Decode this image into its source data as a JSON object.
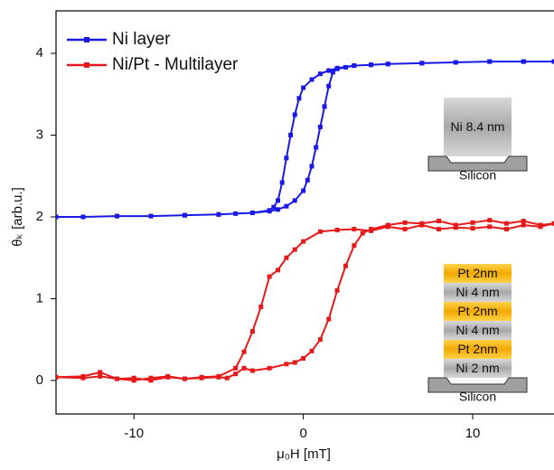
{
  "chart_data": {
    "type": "line",
    "xlabel": "μ₀H [mT]",
    "ylabel": "θₖ [arb.u.]",
    "xlim": [
      -14.6,
      14.8
    ],
    "ylim": [
      -0.41,
      4.52
    ],
    "xticks": [
      -10,
      0,
      10
    ],
    "yticks": [
      0,
      1,
      2,
      3,
      4
    ],
    "legend": "upper left",
    "series": [
      {
        "name": "Ni layer",
        "color": "#1a1ae6",
        "x": [
          -14.6,
          -13,
          -11,
          -9,
          -7,
          -5,
          -4,
          -3,
          -2,
          -1.5,
          -1,
          -0.5,
          0,
          0.25,
          0.5,
          0.75,
          1,
          1.25,
          1.5,
          1.75,
          2,
          2.5,
          3,
          4,
          5,
          7,
          9,
          11,
          13,
          14.8,
          13,
          11,
          9,
          7,
          5,
          4,
          3,
          2,
          1.5,
          1,
          0.5,
          0,
          -0.25,
          -0.5,
          -0.75,
          -1,
          -1.25,
          -1.5,
          -1.75,
          -2,
          -3,
          -5,
          -7,
          -9,
          -11,
          -13,
          -14.6
        ],
        "values": [
          2.0,
          2.0,
          2.01,
          2.01,
          2.02,
          2.03,
          2.04,
          2.05,
          2.07,
          2.09,
          2.13,
          2.2,
          2.32,
          2.45,
          2.62,
          2.85,
          3.1,
          3.35,
          3.6,
          3.77,
          3.81,
          3.83,
          3.85,
          3.86,
          3.87,
          3.88,
          3.89,
          3.9,
          3.9,
          3.9,
          3.9,
          3.9,
          3.89,
          3.88,
          3.87,
          3.86,
          3.85,
          3.82,
          3.79,
          3.75,
          3.68,
          3.58,
          3.45,
          3.25,
          3.0,
          2.72,
          2.42,
          2.2,
          2.12,
          2.08,
          2.05,
          2.03,
          2.02,
          2.01,
          2.01,
          2.0,
          2.0
        ]
      },
      {
        "name": "Ni/Pt - Multilayer",
        "color": "#e61a1a",
        "x": [
          -14.6,
          -13,
          -12,
          -11,
          -10,
          -9,
          -8,
          -7,
          -6,
          -5,
          -4.5,
          -4,
          -3.5,
          -3,
          -2,
          -1,
          -0.5,
          0,
          0.5,
          1,
          1.5,
          2,
          2.5,
          3,
          3.5,
          4,
          5,
          6,
          7,
          8,
          9,
          10,
          11,
          12,
          13,
          14,
          14.8,
          14,
          13,
          12,
          11,
          10,
          9,
          8,
          7,
          6,
          5,
          4,
          3,
          2,
          1,
          0,
          -0.5,
          -1,
          -1.5,
          -2,
          -2.5,
          -3,
          -3.5,
          -4,
          -5,
          -6,
          -7,
          -8,
          -9,
          -10,
          -11,
          -12,
          -13,
          -14.6
        ],
        "values": [
          0.04,
          0.05,
          0.1,
          0.02,
          0.03,
          0.0,
          0.04,
          0.02,
          0.03,
          0.04,
          0.03,
          0.08,
          0.15,
          0.12,
          0.15,
          0.2,
          0.22,
          0.27,
          0.36,
          0.5,
          0.75,
          1.1,
          1.4,
          1.65,
          1.8,
          1.85,
          1.9,
          1.93,
          1.92,
          1.95,
          1.9,
          1.93,
          1.96,
          1.92,
          1.95,
          1.9,
          1.92,
          1.88,
          1.9,
          1.85,
          1.88,
          1.86,
          1.87,
          1.85,
          1.9,
          1.85,
          1.88,
          1.83,
          1.85,
          1.84,
          1.82,
          1.7,
          1.6,
          1.5,
          1.35,
          1.27,
          0.9,
          0.6,
          0.35,
          0.15,
          0.05,
          0.04,
          0.02,
          0.05,
          0.03,
          0.0,
          0.02,
          0.05,
          0.03,
          0.04
        ]
      }
    ],
    "insets": [
      {
        "layers": [
          {
            "label": "Ni 8.4 nm",
            "color": "#b0b0b0"
          }
        ],
        "substrate": "Silicon"
      },
      {
        "layers": [
          {
            "label": "Pt 2nm",
            "color": "#f5b800"
          },
          {
            "label": "Ni 4 nm",
            "color": "#b0b0b0"
          },
          {
            "label": "Pt 2nm",
            "color": "#f5b800"
          },
          {
            "label": "Ni 4 nm",
            "color": "#b0b0b0"
          },
          {
            "label": "Pt 2nm",
            "color": "#f5b800"
          },
          {
            "label": "Ni 2 nm",
            "color": "#b0b0b0"
          }
        ],
        "substrate": "Silicon"
      }
    ]
  }
}
